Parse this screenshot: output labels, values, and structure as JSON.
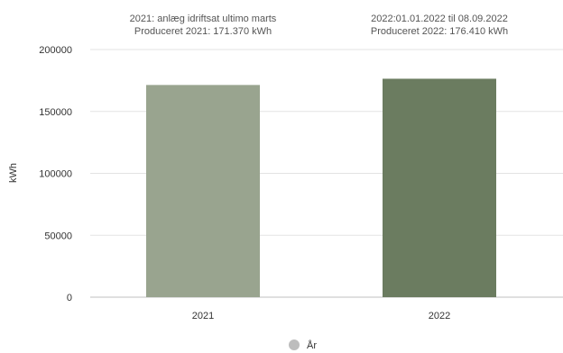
{
  "chart_data": {
    "type": "bar",
    "categories": [
      "2021",
      "2022"
    ],
    "values": [
      171370,
      176410
    ],
    "colors": [
      "#99a48f",
      "#6b7c60"
    ],
    "ylabel": "kWh",
    "ylim": [
      0,
      200000
    ],
    "yticks": [
      "0",
      "50000",
      "100000",
      "150000",
      "200000"
    ],
    "grid": true,
    "legend": {
      "label": "År",
      "color": "#bdbdbd",
      "placement": "bottom-center"
    },
    "annotations": [
      {
        "line1": "2021: anlæg idriftsat ultimo marts",
        "line2": "Produceret 2021: 171.370 kWh"
      },
      {
        "line1": "2022:01.01.2022 til 08.09.2022",
        "line2": "Produceret 2022: 176.410 kWh"
      }
    ]
  }
}
